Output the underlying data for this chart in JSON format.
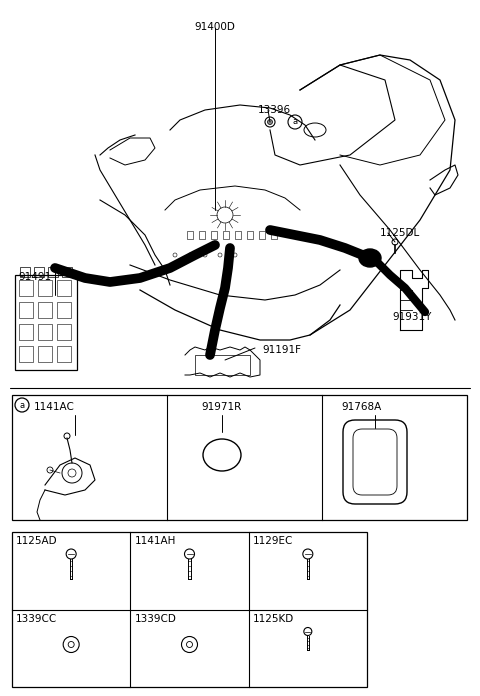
{
  "bg_color": "#ffffff",
  "lc": "#000000",
  "fig_width": 4.8,
  "fig_height": 6.96,
  "dpi": 100,
  "labels": {
    "91400D": [
      203,
      22,
      "center"
    ],
    "13396": [
      258,
      105,
      "left"
    ],
    "91491": [
      18,
      272,
      "left"
    ],
    "91191F": [
      265,
      345,
      "left"
    ],
    "1125DL": [
      380,
      230,
      "left"
    ],
    "91931Y": [
      390,
      310,
      "left"
    ],
    "1141AC": [
      75,
      403,
      "left"
    ],
    "91971R": [
      220,
      403,
      "center"
    ],
    "91768A": [
      365,
      403,
      "center"
    ],
    "1125AD": [
      22,
      543,
      "left"
    ],
    "1141AH": [
      138,
      543,
      "left"
    ],
    "1129EC": [
      254,
      543,
      "left"
    ],
    "1339CC": [
      22,
      628,
      "left"
    ],
    "1339CD": [
      138,
      628,
      "left"
    ],
    "1125KD": [
      254,
      628,
      "left"
    ]
  }
}
